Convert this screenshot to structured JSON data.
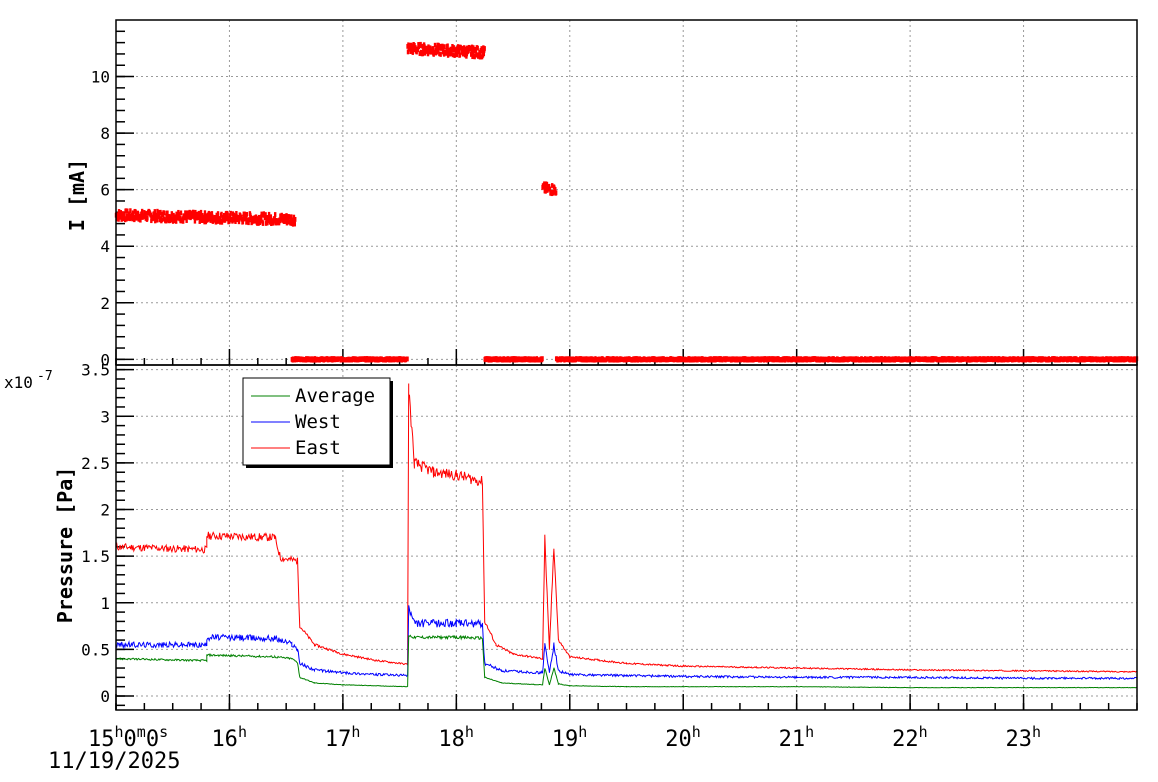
{
  "chart_data": [
    {
      "type": "scatter",
      "ylabel": "I [mA]",
      "xlim": [
        15.0,
        24.0
      ],
      "ylim": [
        -0.2,
        12.0
      ],
      "y_ticks": [
        0,
        2,
        4,
        6,
        8,
        10
      ],
      "y_tick_labels": [
        "0",
        "2",
        "4",
        "6",
        "8",
        "10"
      ],
      "grid": true,
      "series": [
        {
          "color": "#ff0000",
          "points": [
            {
              "x": [
                15.0,
                16.58
              ],
              "y": [
                5.1,
                4.95
              ]
            },
            {
              "x": [
                16.55,
                17.57
              ],
              "y": [
                0.0,
                0.0
              ]
            },
            {
              "x": [
                17.57,
                18.25
              ],
              "y": [
                11.0,
                10.85
              ]
            },
            {
              "x": [
                18.25,
                18.76
              ],
              "y": [
                0.0,
                0.0
              ]
            },
            {
              "x": [
                18.76,
                18.88
              ],
              "y": [
                6.05,
                6.0
              ]
            },
            {
              "x": [
                18.88,
                24.0
              ],
              "y": [
                0.0,
                0.0
              ]
            }
          ]
        }
      ]
    },
    {
      "type": "line",
      "ylabel": "Pressure [Pa]",
      "y_scale_label": "x10",
      "y_scale_exp": "-7",
      "ylim": [
        -0.15,
        3.55
      ],
      "y_ticks": [
        0,
        0.5,
        1,
        1.5,
        2,
        2.5,
        3,
        3.5
      ],
      "y_tick_labels": [
        "0",
        "0.5",
        "1",
        "1.5",
        "2",
        "2.5",
        "3",
        "3.5"
      ],
      "grid": true,
      "legend": {
        "placement": "top-left",
        "entries": [
          {
            "label": "Average",
            "color": "#008000"
          },
          {
            "label": "West",
            "color": "#0000ff"
          },
          {
            "label": "East",
            "color": "#ff0000"
          }
        ]
      },
      "series": [
        {
          "name": "East",
          "color": "#ff0000",
          "x": [
            15.0,
            15.8,
            15.8,
            16.4,
            16.45,
            16.6,
            16.62,
            16.75,
            17.0,
            17.3,
            17.57,
            17.58,
            17.63,
            17.8,
            18.0,
            18.23,
            18.25,
            18.35,
            18.5,
            18.76,
            18.78,
            18.82,
            18.86,
            18.9,
            19.0,
            19.5,
            20.0,
            21.0,
            22.0,
            23.0,
            24.0
          ],
          "y": [
            1.6,
            1.57,
            1.72,
            1.7,
            1.48,
            1.45,
            0.75,
            0.55,
            0.45,
            0.38,
            0.34,
            3.3,
            2.5,
            2.4,
            2.37,
            2.3,
            0.8,
            0.55,
            0.45,
            0.4,
            1.7,
            0.5,
            1.6,
            0.6,
            0.42,
            0.35,
            0.32,
            0.3,
            0.28,
            0.27,
            0.26
          ]
        },
        {
          "name": "West",
          "color": "#0000ff",
          "x": [
            15.0,
            15.8,
            15.8,
            16.4,
            16.55,
            16.6,
            16.62,
            16.75,
            17.0,
            17.3,
            17.57,
            17.58,
            17.63,
            18.0,
            18.23,
            18.25,
            18.4,
            18.76,
            18.78,
            18.82,
            18.86,
            18.9,
            19.0,
            19.5,
            20.0,
            21.0,
            22.0,
            23.0,
            24.0
          ],
          "y": [
            0.55,
            0.55,
            0.63,
            0.62,
            0.56,
            0.5,
            0.35,
            0.28,
            0.25,
            0.23,
            0.22,
            0.95,
            0.78,
            0.78,
            0.77,
            0.35,
            0.27,
            0.25,
            0.55,
            0.25,
            0.55,
            0.27,
            0.23,
            0.22,
            0.21,
            0.2,
            0.2,
            0.19,
            0.19
          ]
        },
        {
          "name": "Average",
          "color": "#008000",
          "x": [
            15.0,
            15.8,
            15.8,
            16.4,
            16.55,
            16.6,
            16.62,
            16.75,
            17.0,
            17.3,
            17.57,
            17.58,
            17.63,
            18.0,
            18.23,
            18.25,
            18.4,
            18.76,
            18.78,
            18.82,
            18.86,
            18.9,
            19.0,
            19.5,
            20.0,
            21.0,
            22.0,
            23.0,
            24.0
          ],
          "y": [
            0.4,
            0.38,
            0.44,
            0.42,
            0.4,
            0.36,
            0.2,
            0.14,
            0.12,
            0.11,
            0.1,
            0.65,
            0.63,
            0.63,
            0.62,
            0.2,
            0.14,
            0.12,
            0.3,
            0.12,
            0.3,
            0.13,
            0.11,
            0.1,
            0.1,
            0.1,
            0.09,
            0.09,
            0.09
          ]
        }
      ]
    }
  ],
  "x_axis": {
    "ticks": [
      15,
      16,
      17,
      18,
      19,
      20,
      21,
      22,
      23
    ],
    "first_label": {
      "h": "15",
      "m": "0",
      "s": "0"
    },
    "labels": [
      "16",
      "17",
      "18",
      "19",
      "20",
      "21",
      "22",
      "23"
    ],
    "unit_h": "h",
    "unit_m": "m",
    "unit_s": "s",
    "date": "11/19/2025"
  }
}
